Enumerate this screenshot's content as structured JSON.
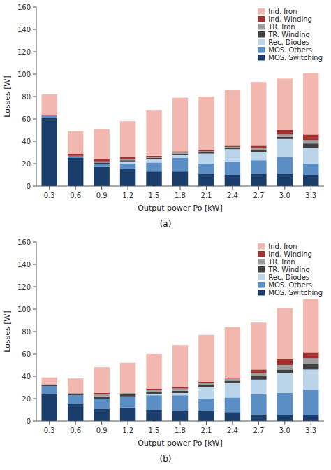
{
  "chart_data": [
    {
      "type": "bar",
      "stacked": true,
      "categories": [
        "0.3",
        "0.6",
        "0.9",
        "1.2",
        "1.5",
        "1.8",
        "2.1",
        "2.4",
        "2.7",
        "3.0",
        "3.3"
      ],
      "series": [
        {
          "name": "MOS. Switching",
          "color": "#1a3d6b",
          "values": [
            61,
            25,
            17,
            15,
            13,
            13,
            11,
            10,
            11,
            11,
            10
          ]
        },
        {
          "name": "MOS. Others",
          "color": "#5b8ec4",
          "values": [
            2,
            2,
            3,
            5,
            8,
            12,
            9,
            12,
            12,
            15,
            10
          ]
        },
        {
          "name": "Rec. Diodes",
          "color": "#bad4ea",
          "values": [
            0,
            0,
            0,
            2,
            3,
            3,
            9,
            11,
            7,
            16,
            14
          ]
        },
        {
          "name": "TR. Winding",
          "color": "#404040",
          "values": [
            0,
            0,
            1,
            1,
            1,
            1,
            1,
            1,
            2,
            2,
            4
          ]
        },
        {
          "name": "TR. Iron",
          "color": "#9e9e9e",
          "values": [
            0,
            0,
            1,
            1,
            1,
            1,
            1,
            1,
            2,
            2,
            3
          ]
        },
        {
          "name": "Ind. Winding",
          "color": "#a83030",
          "values": [
            1,
            2,
            2,
            2,
            1,
            1,
            1,
            1,
            2,
            4,
            5
          ]
        },
        {
          "name": "Ind. Iron",
          "color": "#f2b8b0",
          "values": [
            18,
            20,
            27,
            32,
            41,
            48,
            48,
            50,
            57,
            46,
            55
          ]
        }
      ],
      "x_label": "Output power Po [kW]",
      "y_label": "Losses [W]",
      "ylim": [
        0,
        160
      ],
      "yticks": [
        0,
        20,
        40,
        60,
        80,
        100,
        120,
        140,
        160
      ],
      "legend": "upper right",
      "grid": false,
      "annotations": [
        "(a)"
      ]
    },
    {
      "type": "bar",
      "stacked": true,
      "categories": [
        "0.3",
        "0.6",
        "0.9",
        "1.2",
        "1.5",
        "1.8",
        "2.1",
        "2.4",
        "2.7",
        "3.0",
        "3.3"
      ],
      "series": [
        {
          "name": "MOS. Switching",
          "color": "#1a3d6b",
          "values": [
            24,
            15,
            11,
            12,
            10,
            9,
            9,
            8,
            6,
            5,
            5
          ]
        },
        {
          "name": "MOS. Others",
          "color": "#5b8ec4",
          "values": [
            7,
            8,
            9,
            10,
            13,
            14,
            11,
            13,
            18,
            20,
            23
          ]
        },
        {
          "name": "Rec. Diodes",
          "color": "#bad4ea",
          "values": [
            0,
            0,
            0,
            0,
            1,
            2,
            10,
            13,
            13,
            18,
            18
          ]
        },
        {
          "name": "TR. Winding",
          "color": "#404040",
          "values": [
            1,
            1,
            2,
            2,
            2,
            2,
            2,
            2,
            3,
            3,
            5
          ]
        },
        {
          "name": "TR. Iron",
          "color": "#9e9e9e",
          "values": [
            1,
            1,
            2,
            1,
            2,
            2,
            2,
            2,
            3,
            4,
            5
          ]
        },
        {
          "name": "Ind. Winding",
          "color": "#a83030",
          "values": [
            0,
            0,
            1,
            0,
            1,
            1,
            1,
            1,
            3,
            5,
            5
          ]
        },
        {
          "name": "Ind. Iron",
          "color": "#f2b8b0",
          "values": [
            6,
            13,
            23,
            27,
            31,
            38,
            42,
            45,
            42,
            46,
            48
          ]
        }
      ],
      "x_label": "Output power Po [kW]",
      "y_label": "Losses [W]",
      "ylim": [
        0,
        160
      ],
      "yticks": [
        0,
        20,
        40,
        60,
        80,
        100,
        120,
        140,
        160
      ],
      "legend": "upper right",
      "grid": false,
      "annotations": [
        "(b)"
      ]
    }
  ]
}
